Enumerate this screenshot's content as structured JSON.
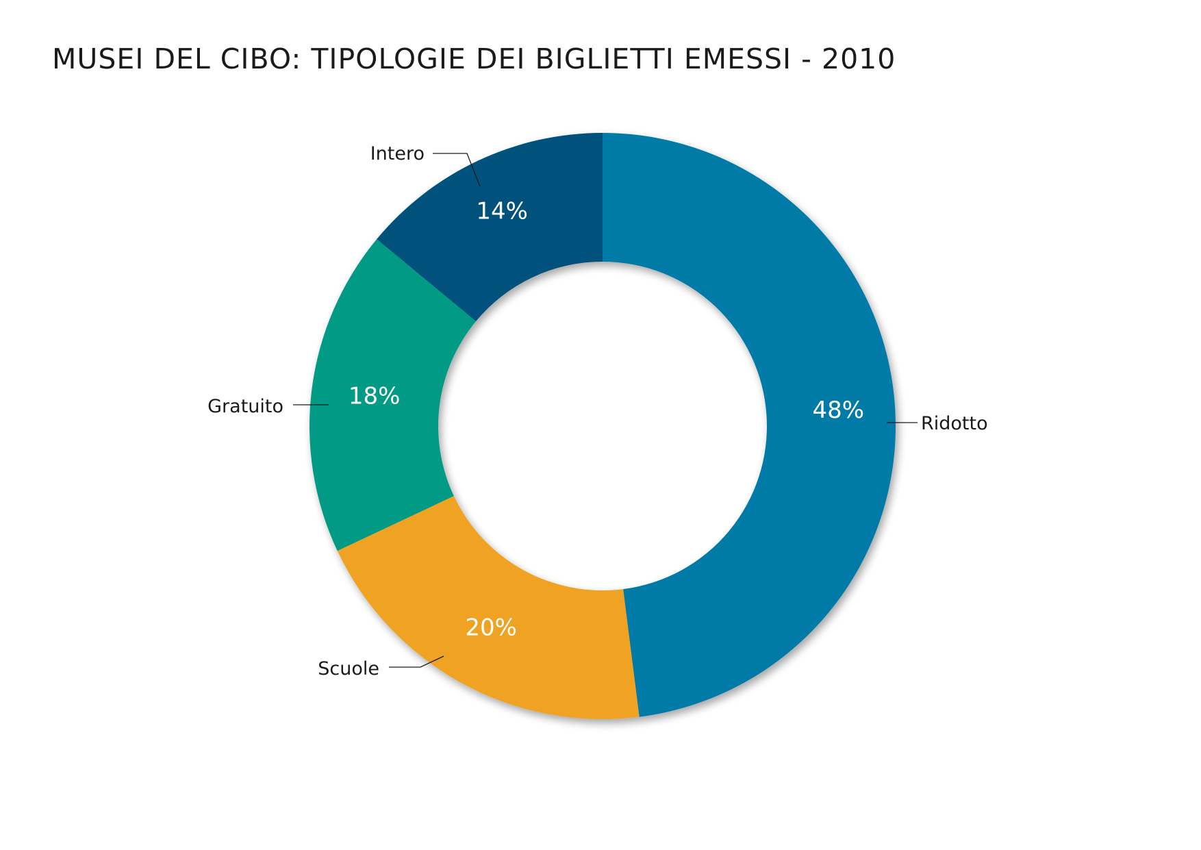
{
  "chart_data": {
    "type": "pie",
    "style": "donut",
    "title": "MUSEI DEL CIBO: TIPOLOGIE DEI BIGLIETTI EMESSI - 2010",
    "slices": [
      {
        "label": "Ridotto",
        "value": 48,
        "value_label": "48%",
        "color": "#037aa7"
      },
      {
        "label": "Scuole",
        "value": 20,
        "value_label": "20%",
        "color": "#f0a220"
      },
      {
        "label": "Gratuito",
        "value": 18,
        "value_label": "18%",
        "color": "#039a85"
      },
      {
        "label": "Intero",
        "value": 14,
        "value_label": "14%",
        "color": "#05517c"
      }
    ],
    "legend": "none"
  }
}
